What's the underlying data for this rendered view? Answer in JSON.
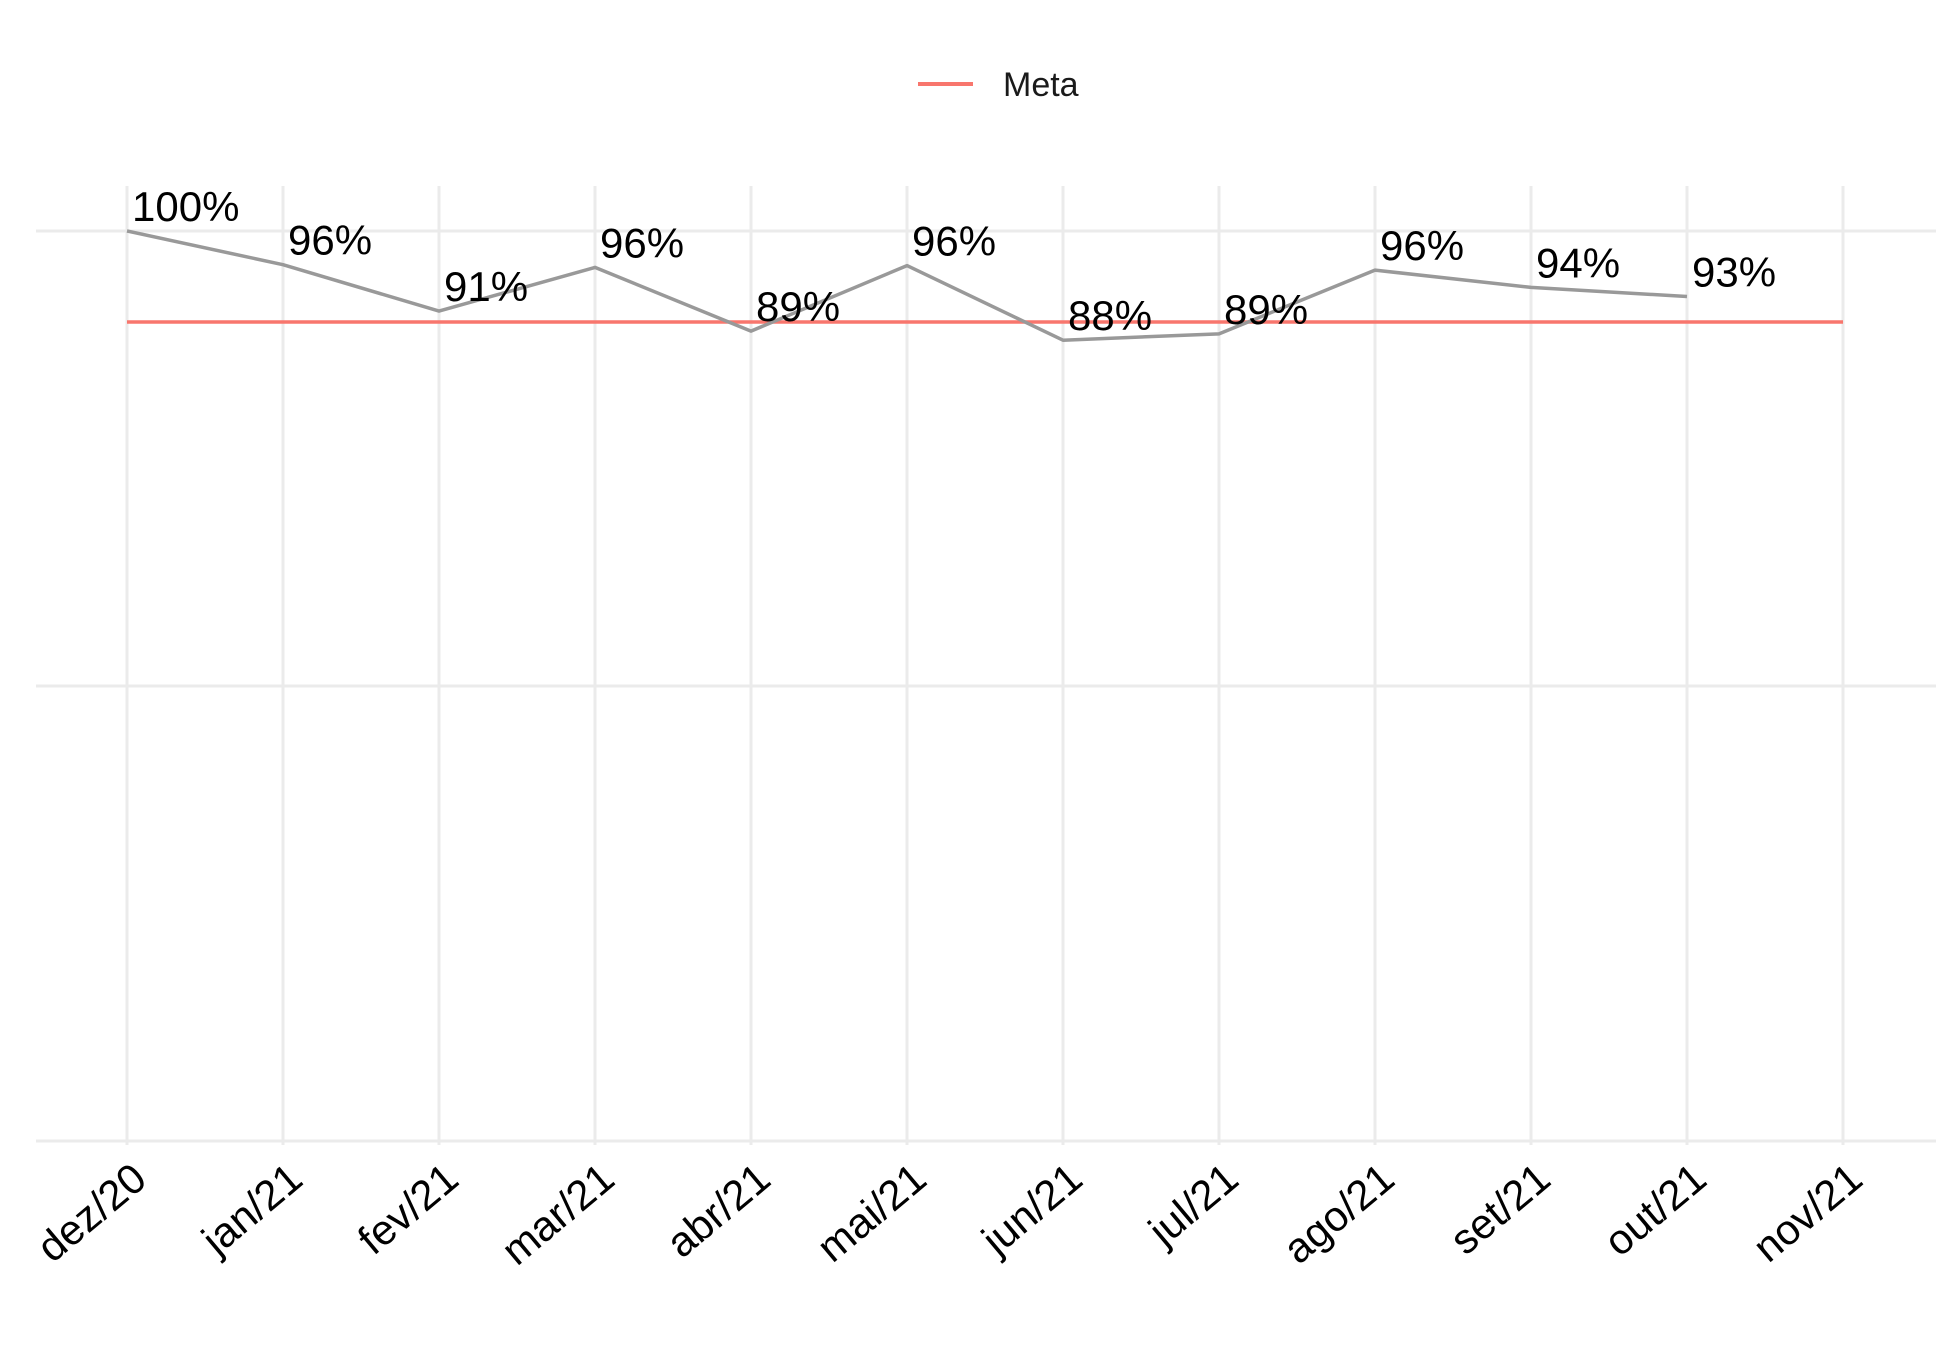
{
  "chart_data": {
    "type": "line",
    "categories": [
      "dez/20",
      "jan/21",
      "fev/21",
      "mar/21",
      "abr/21",
      "mai/21",
      "jun/21",
      "jul/21",
      "ago/21",
      "set/21",
      "out/21",
      "nov/21"
    ],
    "series": [
      {
        "values": [
          100,
          96.3,
          91.2,
          96.0,
          89.0,
          96.2,
          88.0,
          88.7,
          95.7,
          93.8,
          92.8,
          null
        ],
        "labels": [
          "100%",
          "96%",
          "91%",
          "96%",
          "89%",
          "96%",
          "88%",
          "89%",
          "96%",
          "94%",
          "93%",
          ""
        ],
        "color": "#999999"
      }
    ],
    "meta": {
      "name": "Meta",
      "value": 90,
      "color": "#F8766D"
    },
    "legend": {
      "label": "Meta",
      "position": "top"
    },
    "ylim": [
      0,
      100
    ],
    "grid": true,
    "xlabel": "",
    "ylabel": ""
  }
}
